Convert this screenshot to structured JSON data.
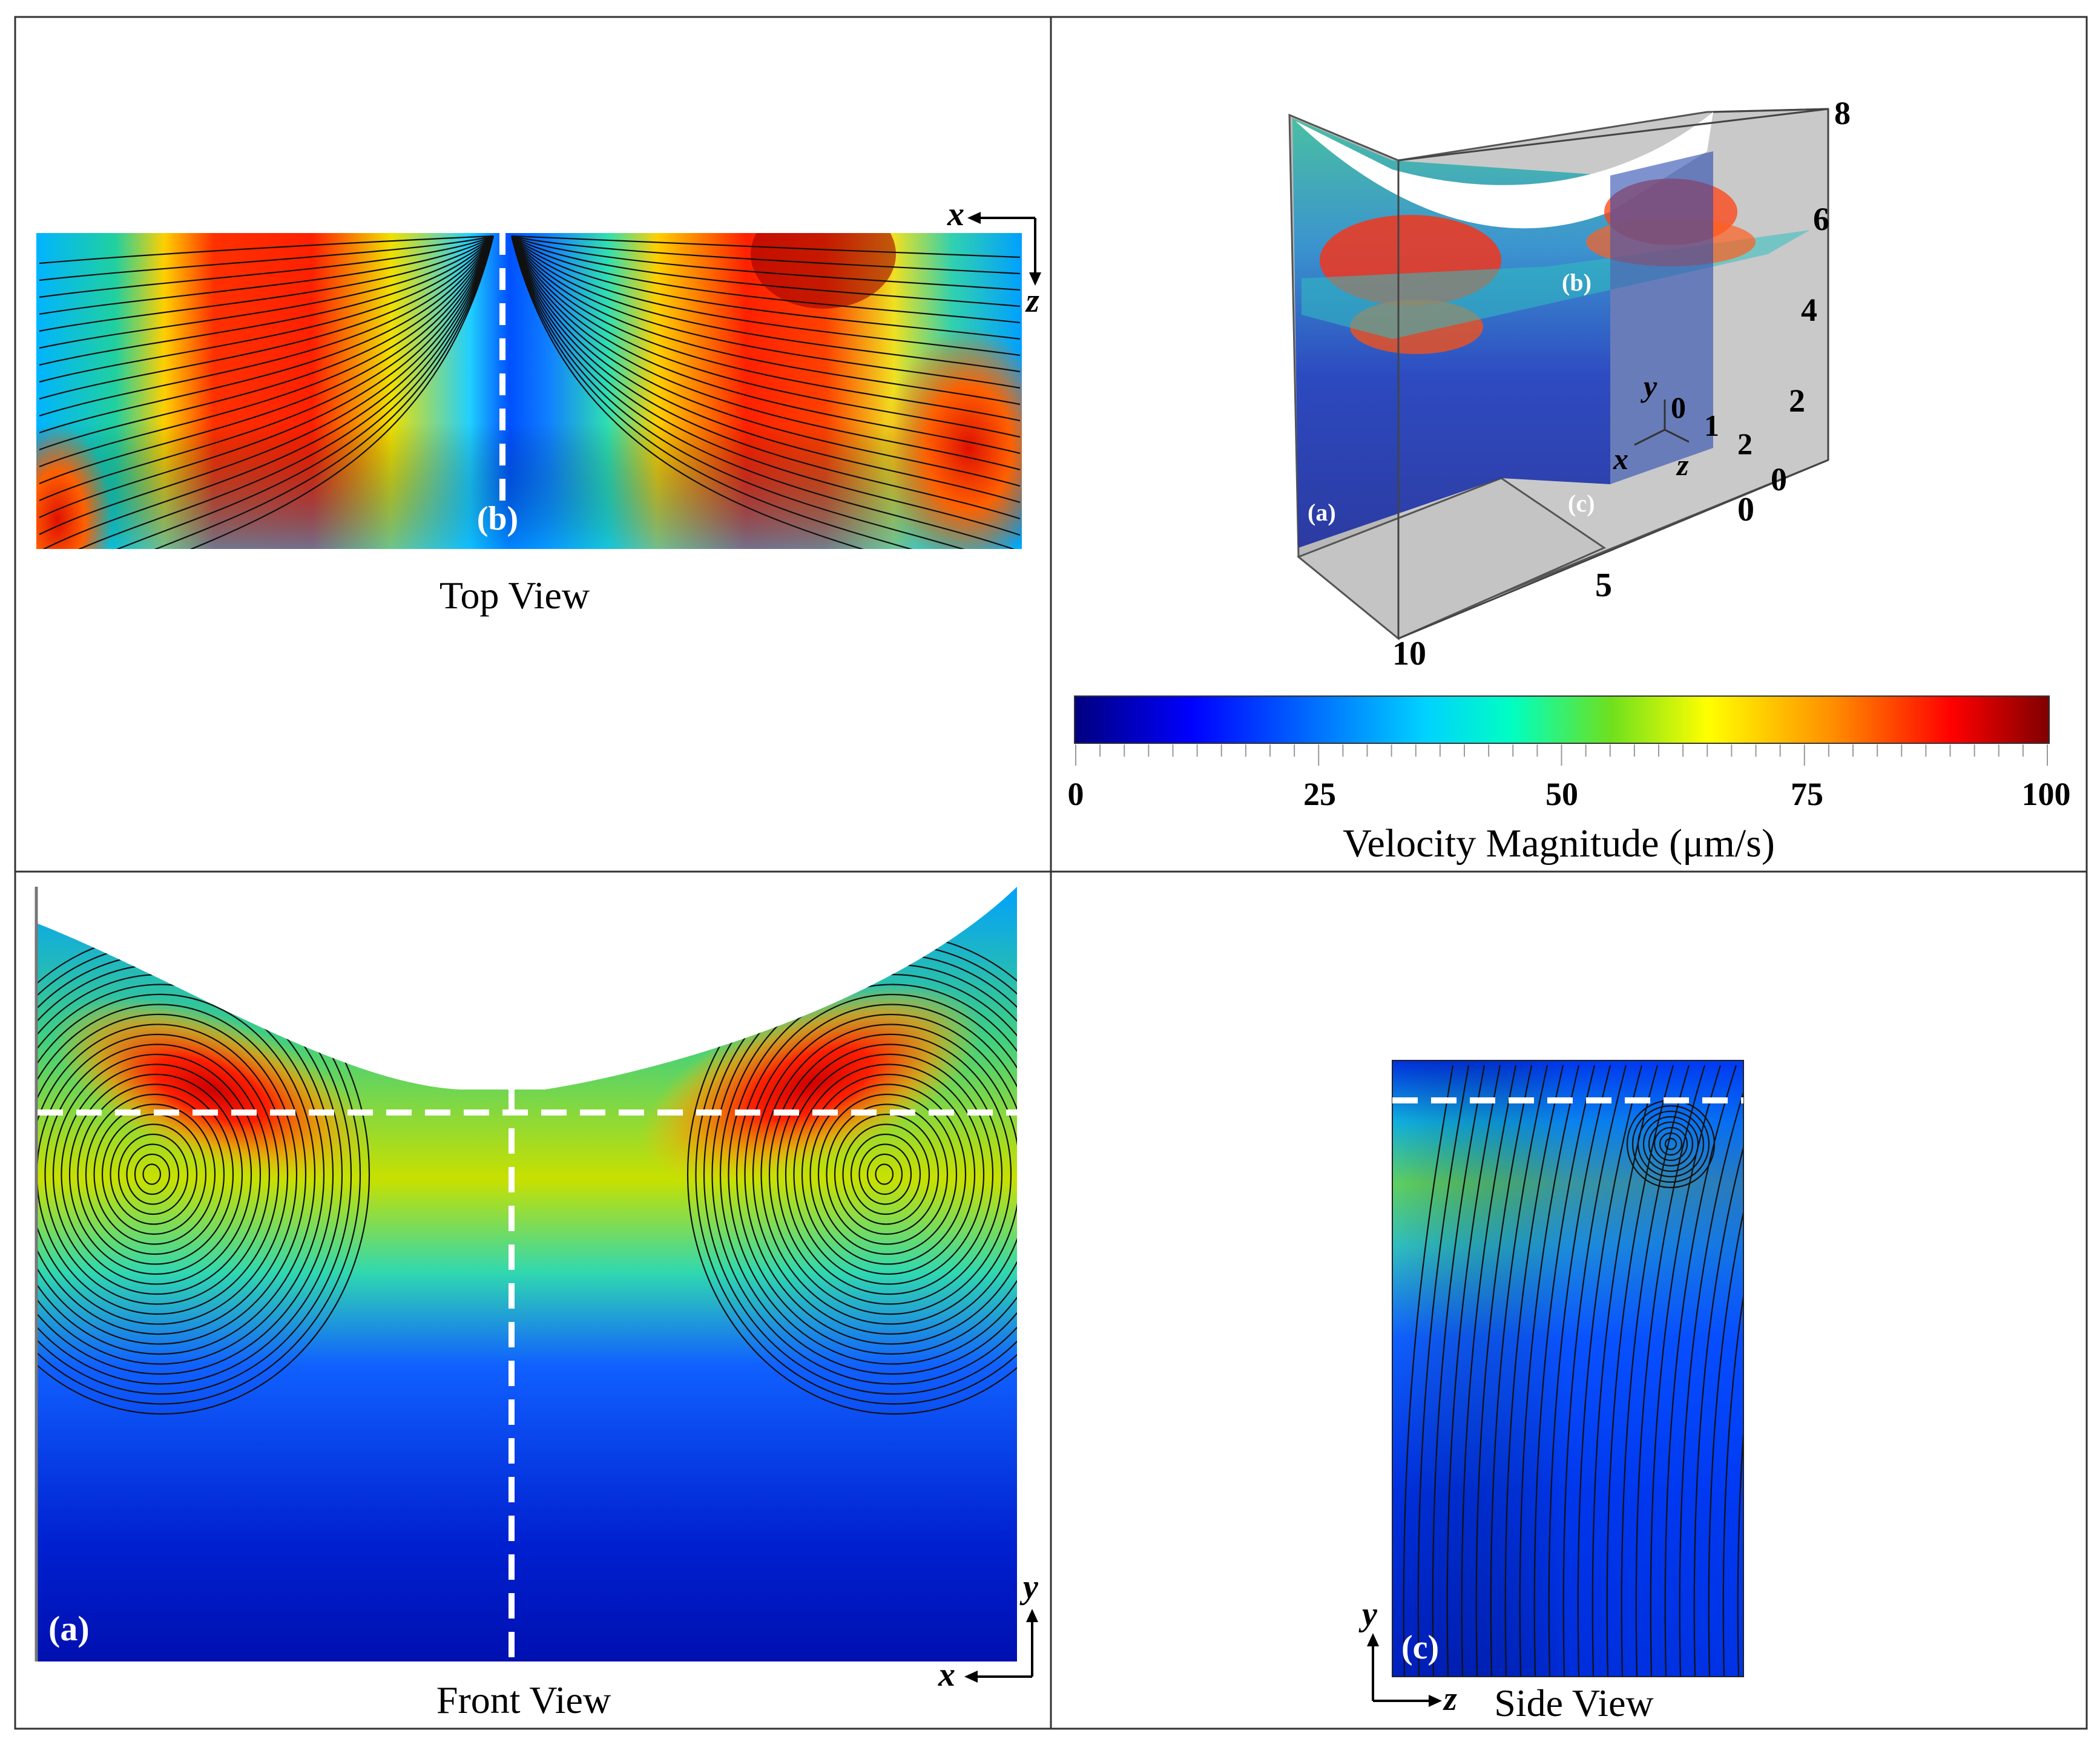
{
  "panels": {
    "top_view": {
      "caption": "Top View",
      "plane_label": "(b)",
      "axes": {
        "horizontal": "x",
        "vertical": "z"
      }
    },
    "front_view": {
      "caption": "Front View",
      "plane_label": "(a)",
      "axes": {
        "horizontal": "x",
        "vertical": "y"
      }
    },
    "side_view": {
      "caption": "Side View",
      "plane_label": "(c)",
      "axes": {
        "horizontal": "z",
        "vertical": "y"
      }
    },
    "iso_view": {
      "plane_labels": [
        "(a)",
        "(b)",
        "(c)"
      ],
      "axis_letters": {
        "x": "x",
        "y": "y",
        "z": "z"
      },
      "y_ticks": [
        "0",
        "2",
        "4",
        "6",
        "8"
      ],
      "z_ticks": [
        "0",
        "1",
        "2"
      ],
      "x_ticks": [
        "0",
        "5",
        "10"
      ]
    }
  },
  "colorbar": {
    "label": "Velocity Magnitude (μm/s)",
    "ticks": [
      "0",
      "25",
      "50",
      "75",
      "100"
    ],
    "min": 0,
    "max": 100,
    "colormap": [
      "#00007f",
      "#0000ff",
      "#00c8ff",
      "#00ffd0",
      "#6ee01e",
      "#ffff00",
      "#ff8c00",
      "#ff0000",
      "#7f0000"
    ]
  }
}
